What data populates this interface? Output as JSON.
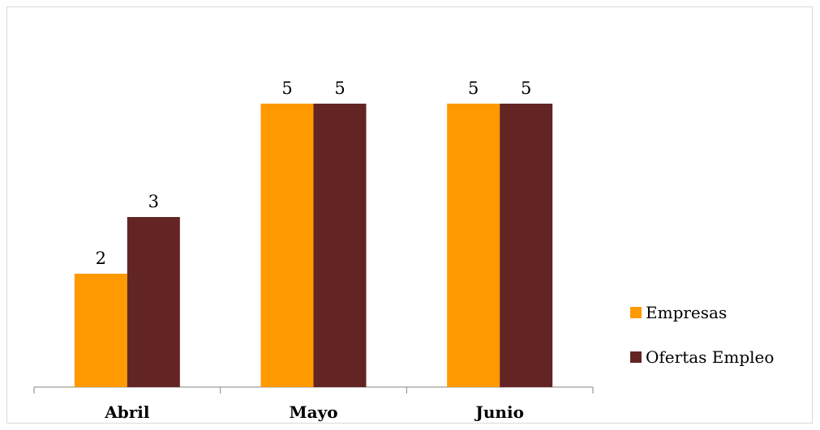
{
  "chart_data": {
    "type": "bar",
    "categories": [
      "Abril",
      "Mayo",
      "Junio"
    ],
    "series": [
      {
        "name": "Empresas",
        "values": [
          2,
          5,
          5
        ],
        "color": "#ff9900"
      },
      {
        "name": "Ofertas Empleo",
        "values": [
          3,
          5,
          5
        ],
        "color": "#632523"
      }
    ],
    "ylim": [
      0,
      6
    ],
    "data_labels": true,
    "gridlines": false,
    "legend_position": "right",
    "title": "",
    "xlabel": "",
    "ylabel": ""
  }
}
